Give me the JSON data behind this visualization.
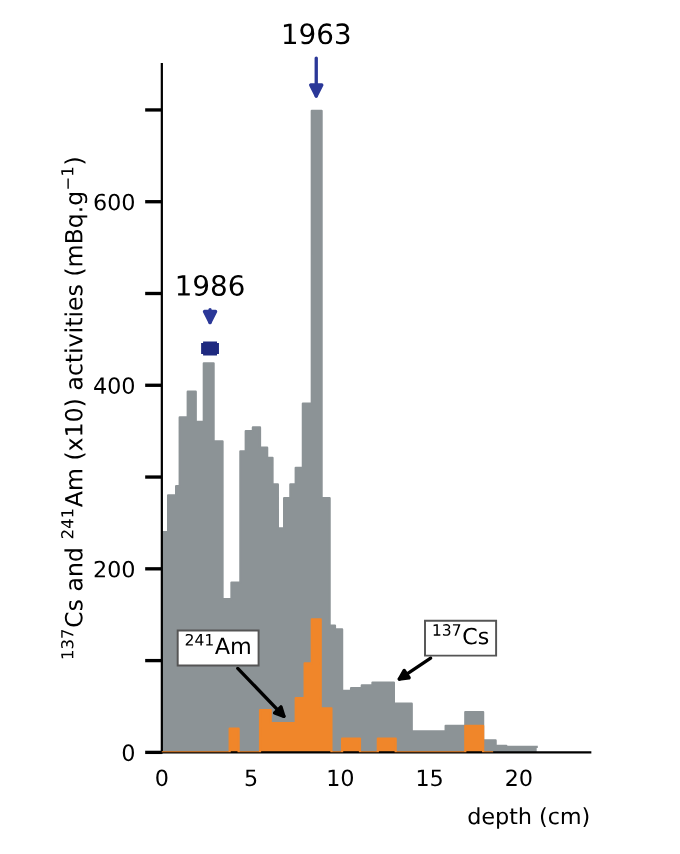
{
  "chart_data": {
    "type": "area",
    "xlabel": "depth (cm)",
    "ylabel": "$^{137}$Cs and $^{241}$Am (x10) activities (mBq.g$^{−1}$)",
    "xlim": [
      0,
      24
    ],
    "ylim": [
      0,
      750
    ],
    "xticks": [
      0,
      5,
      10,
      15,
      20
    ],
    "yticks": [
      0,
      {
        "value": 100,
        "label": null
      },
      200,
      {
        "value": 300,
        "label": null
      },
      400,
      {
        "value": 500,
        "label": null
      },
      600,
      {
        "value": 700,
        "label": null
      }
    ],
    "grid": false,
    "legend": false,
    "series": [
      {
        "color": "#8c9396",
        "x": [
          0,
          0.35,
          0.35,
          0.8,
          0.8,
          1.0,
          1.0,
          1.45,
          1.45,
          1.9,
          1.9,
          2.35,
          2.35,
          2.9,
          2.9,
          3.4,
          3.4,
          3.9,
          3.9,
          4.4,
          4.4,
          4.7,
          4.7,
          5.1,
          5.1,
          5.5,
          5.5,
          5.9,
          5.9,
          6.2,
          6.2,
          6.5,
          6.5,
          6.85,
          6.85,
          7.2,
          7.2,
          7.5,
          7.5,
          7.9,
          7.9,
          8.4,
          8.4,
          8.95,
          8.95,
          9.4,
          9.4,
          9.7,
          9.7,
          10.1,
          10.1,
          10.6,
          10.6,
          11.2,
          11.2,
          11.8,
          11.8,
          12.5,
          12.5,
          13.0,
          13.0,
          14.0,
          14.0,
          15.9,
          15.9,
          17.0,
          17.0,
          18.0,
          18.0,
          18.7,
          18.7,
          19.3,
          19.3,
          21.0
        ],
        "values": [
          240,
          240,
          280,
          280,
          290,
          290,
          365,
          365,
          393,
          393,
          360,
          360,
          424,
          424,
          339,
          339,
          167,
          167,
          185,
          185,
          328,
          328,
          350,
          350,
          354,
          354,
          332,
          332,
          321,
          321,
          292,
          292,
          244,
          244,
          277,
          277,
          292,
          292,
          310,
          310,
          380,
          380,
          699,
          699,
          277,
          277,
          138,
          138,
          134,
          134,
          67,
          67,
          70,
          70,
          73,
          73,
          76,
          76,
          76,
          76,
          53,
          53,
          23,
          23,
          29,
          29,
          44,
          44,
          13,
          13,
          7,
          7,
          6,
          6
        ]
      },
      {
        "color": "#f0862a",
        "x": [
          0,
          3.8,
          3.8,
          4.3,
          4.3,
          5.5,
          5.5,
          6.1,
          6.1,
          7.5,
          7.5,
          8.0,
          8.0,
          8.4,
          8.4,
          8.9,
          8.9,
          9.5,
          9.5,
          10.1,
          10.1,
          11.1,
          11.1,
          12.1,
          12.1,
          13.1,
          13.1,
          17.0,
          17.0,
          18.0,
          18.0,
          18.5
        ],
        "values": [
          0,
          0,
          26,
          26,
          0,
          0,
          46,
          46,
          32,
          32,
          59,
          59,
          97,
          97,
          145,
          145,
          48,
          48,
          0,
          0,
          15,
          15,
          0,
          0,
          15,
          15,
          0,
          0,
          29,
          29,
          0,
          0
        ]
      },
      {
        "type": "scatter",
        "color": "#1f2a80",
        "marker": "square",
        "x": [
          2.7
        ],
        "values": [
          440
        ],
        "xerrors": [
          [
            2.2,
            3.2
          ]
        ]
      }
    ],
    "annotations": [
      {
        "text": "1963",
        "x": 8.65,
        "y": 699
      },
      {
        "text": "1986",
        "x": 2.7,
        "y": 440
      },
      {
        "text": "$^{241}$Am",
        "x": 7.2,
        "y": 32
      },
      {
        "text": "$^{137}$Cs",
        "x": 13.0,
        "y": 76
      }
    ]
  }
}
